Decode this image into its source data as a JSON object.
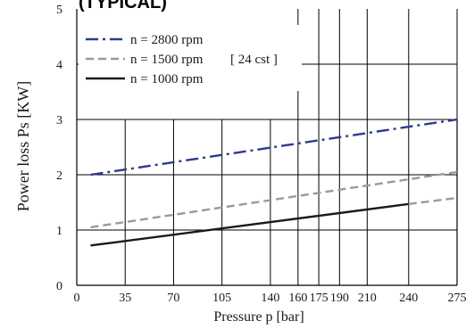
{
  "chart_data": {
    "type": "line",
    "title": "(TYPICAL)",
    "xlabel": "Pressure  p  [bar]",
    "ylabel": "Power  loss  Ps [KW]",
    "xlim": [
      0,
      275
    ],
    "ylim": [
      0,
      5
    ],
    "x_ticks": [
      0,
      35,
      70,
      105,
      140,
      160,
      175,
      190,
      210,
      240,
      275
    ],
    "x_tick_labels": [
      "0",
      "35",
      "70",
      "105",
      "140",
      "160",
      "175",
      "190",
      "210",
      "240",
      "275"
    ],
    "y_ticks": [
      0,
      1,
      2,
      3,
      4,
      5
    ],
    "y_tick_labels": [
      "0",
      "1",
      "2",
      "3",
      "4",
      "5"
    ],
    "grid": true,
    "legend_position": "top-left",
    "series": [
      {
        "name": "n = 2800 rpm",
        "style": "dashdot",
        "color": "#2e3a8c",
        "x": [
          10,
          275
        ],
        "y": [
          2.0,
          3.0
        ]
      },
      {
        "name": "n = 1500 rpm",
        "style": "dashed",
        "color": "#9a9a9a",
        "x": [
          10,
          275
        ],
        "y": [
          1.05,
          2.05
        ]
      },
      {
        "name": "n = 1000 rpm",
        "style": "solid",
        "color": "#1a1a1a",
        "x": [
          10,
          240
        ],
        "y": [
          0.72,
          1.47
        ]
      },
      {
        "name": "",
        "style": "dashed",
        "color": "#9a9a9a",
        "x": [
          240,
          275
        ],
        "y": [
          1.47,
          1.58
        ]
      }
    ],
    "annotation": "[ 24 cst ]"
  }
}
